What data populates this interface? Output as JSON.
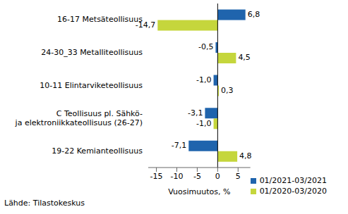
{
  "chart_data": {
    "type": "bar",
    "orientation": "horizontal",
    "categories": [
      "16-17 Metsäteollisuus",
      "24-30_33 Metalliteollisuus",
      "10-11 Elintarviketeollisuus",
      "C Teollisuus pl. Sähkö-\nja elektroniikkateollisuus (26-27)",
      "19-22 Kemianteollisuus"
    ],
    "series": [
      {
        "name": "01/2021-03/2021",
        "color": "#1f64ad",
        "values": [
          6.8,
          -0.5,
          -1.0,
          -3.1,
          -7.1
        ],
        "value_labels": [
          "6,8",
          "-0,5",
          "-1,0",
          "-3,1",
          "-7,1"
        ]
      },
      {
        "name": "01/2020-03/2020",
        "color": "#c5d63c",
        "values": [
          -14.7,
          4.5,
          0.3,
          -1.0,
          4.8
        ],
        "value_labels": [
          "-14,7",
          "4,5",
          "0,3",
          "-1,0",
          "4,8"
        ]
      }
    ],
    "x_label": "Vuosimuutos, %",
    "xlim": [
      -17,
      8
    ],
    "xticks": [
      -15,
      -10,
      -5,
      0,
      5
    ],
    "grid": false,
    "data_labels": true,
    "legend": "lower right",
    "annotations": [
      "Lähde: Tilastokeskus"
    ]
  }
}
